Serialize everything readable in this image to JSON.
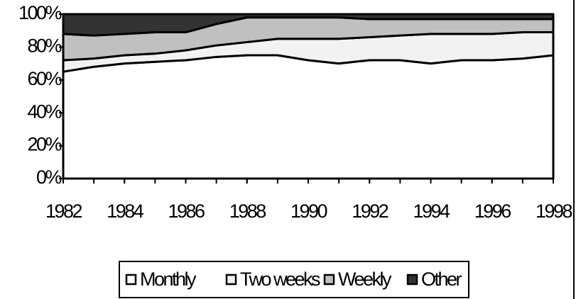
{
  "chart_data": {
    "type": "stacked_area",
    "x": [
      1982,
      1983,
      1984,
      1985,
      1986,
      1987,
      1988,
      1989,
      1990,
      1991,
      1992,
      1993,
      1994,
      1995,
      1996,
      1997,
      1998
    ],
    "xlim": [
      1982,
      1998
    ],
    "xticks": [
      1982,
      1984,
      1986,
      1988,
      1990,
      1992,
      1994,
      1996,
      1998
    ],
    "ylim": [
      0,
      100
    ],
    "yticks": [
      {
        "value": 0,
        "label": "0%"
      },
      {
        "value": 20,
        "label": "20%"
      },
      {
        "value": 40,
        "label": "40%"
      },
      {
        "value": 60,
        "label": "60%"
      },
      {
        "value": 80,
        "label": "80%"
      },
      {
        "value": 100,
        "label": "100%"
      }
    ],
    "legend": "bottom",
    "series": [
      {
        "name": "Monthly",
        "color": "#ffffff",
        "values": [
          65,
          68,
          70,
          71,
          72,
          74,
          75,
          75,
          72,
          70,
          72,
          72,
          70,
          72,
          72,
          73,
          75
        ]
      },
      {
        "name": "Two weeks",
        "color": "#f2f2f2",
        "values": [
          7,
          5,
          5,
          5,
          6,
          7,
          8,
          10,
          13,
          15,
          14,
          15,
          18,
          16,
          16,
          16,
          14
        ]
      },
      {
        "name": "Weekly",
        "color": "#c0c0c0",
        "values": [
          16,
          14,
          13,
          13,
          11,
          13,
          15,
          13,
          13,
          13,
          11,
          10,
          9,
          9,
          9,
          8,
          8
        ]
      },
      {
        "name": "Other",
        "color": "#333333",
        "values": [
          12,
          13,
          12,
          11,
          11,
          6,
          2,
          2,
          2,
          2,
          3,
          3,
          3,
          3,
          3,
          3,
          3
        ]
      }
    ]
  }
}
